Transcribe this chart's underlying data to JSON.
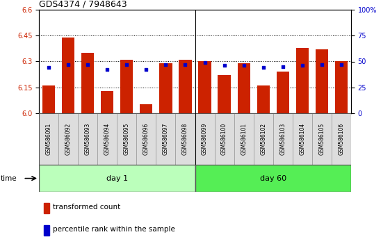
{
  "title": "GDS4374 / 7948643",
  "samples": [
    "GSM586091",
    "GSM586092",
    "GSM586093",
    "GSM586094",
    "GSM586095",
    "GSM586096",
    "GSM586097",
    "GSM586098",
    "GSM586099",
    "GSM586100",
    "GSM586101",
    "GSM586102",
    "GSM586103",
    "GSM586104",
    "GSM586105",
    "GSM586106"
  ],
  "bar_values": [
    6.16,
    6.44,
    6.35,
    6.13,
    6.31,
    6.05,
    6.29,
    6.31,
    6.3,
    6.22,
    6.29,
    6.16,
    6.24,
    6.38,
    6.37,
    6.3
  ],
  "percentile_values": [
    44,
    47,
    47,
    42,
    47,
    42,
    47,
    47,
    49,
    46,
    46,
    44,
    45,
    46,
    47,
    47
  ],
  "bar_color": "#cc2200",
  "marker_color": "#0000cc",
  "ylim_left": [
    6.0,
    6.6
  ],
  "ylim_right": [
    0,
    100
  ],
  "yticks_left": [
    6.0,
    6.15,
    6.3,
    6.45,
    6.6
  ],
  "yticks_right": [
    0,
    25,
    50,
    75,
    100
  ],
  "ytick_labels_right": [
    "0",
    "25",
    "50",
    "75",
    "100%"
  ],
  "day1_samples": 8,
  "day60_samples": 8,
  "day1_label": "day 1",
  "day60_label": "day 60",
  "day1_color": "#bbffbb",
  "day60_color": "#55ee55",
  "time_label": "time",
  "legend_bar_label": "transformed count",
  "legend_marker_label": "percentile rank within the sample",
  "bar_bottom": 6.0,
  "bar_width": 0.65
}
